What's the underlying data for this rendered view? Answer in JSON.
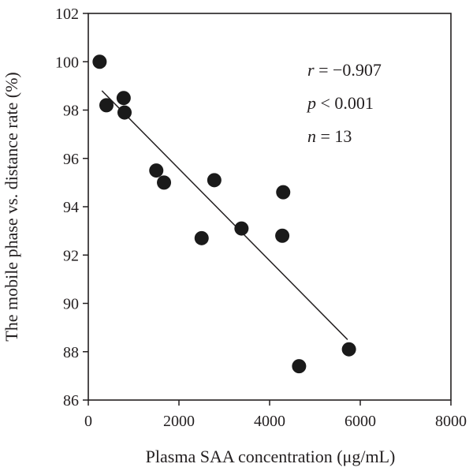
{
  "chart_data": {
    "type": "scatter",
    "title": "",
    "xlabel": "Plasma SAA concentration (μg/mL)",
    "ylabel": "The mobile phase vs. distance rate (%)",
    "xlim": [
      0,
      8000
    ],
    "ylim": [
      86,
      102
    ],
    "xticks": [
      0,
      2000,
      4000,
      6000,
      8000
    ],
    "yticks": [
      86,
      88,
      90,
      92,
      94,
      96,
      98,
      100,
      102
    ],
    "grid": false,
    "points": [
      {
        "x": 250,
        "y": 100.0
      },
      {
        "x": 400,
        "y": 98.2
      },
      {
        "x": 780,
        "y": 98.5
      },
      {
        "x": 800,
        "y": 97.9
      },
      {
        "x": 1500,
        "y": 95.5
      },
      {
        "x": 1670,
        "y": 95.0
      },
      {
        "x": 2500,
        "y": 92.7
      },
      {
        "x": 2780,
        "y": 95.1
      },
      {
        "x": 3380,
        "y": 93.1
      },
      {
        "x": 4280,
        "y": 92.8
      },
      {
        "x": 4300,
        "y": 94.6
      },
      {
        "x": 4650,
        "y": 87.4
      },
      {
        "x": 5750,
        "y": 88.1
      }
    ],
    "fit_line": {
      "x": [
        300,
        5720
      ],
      "y": [
        98.8,
        88.5
      ]
    },
    "marker_color": "#1a1a1a",
    "annotations": {
      "r_label": "r",
      "r_value": " = −0.907",
      "p_label": "p",
      "p_value": " < 0.001",
      "n_label": "n",
      "n_value": " = 13"
    }
  }
}
